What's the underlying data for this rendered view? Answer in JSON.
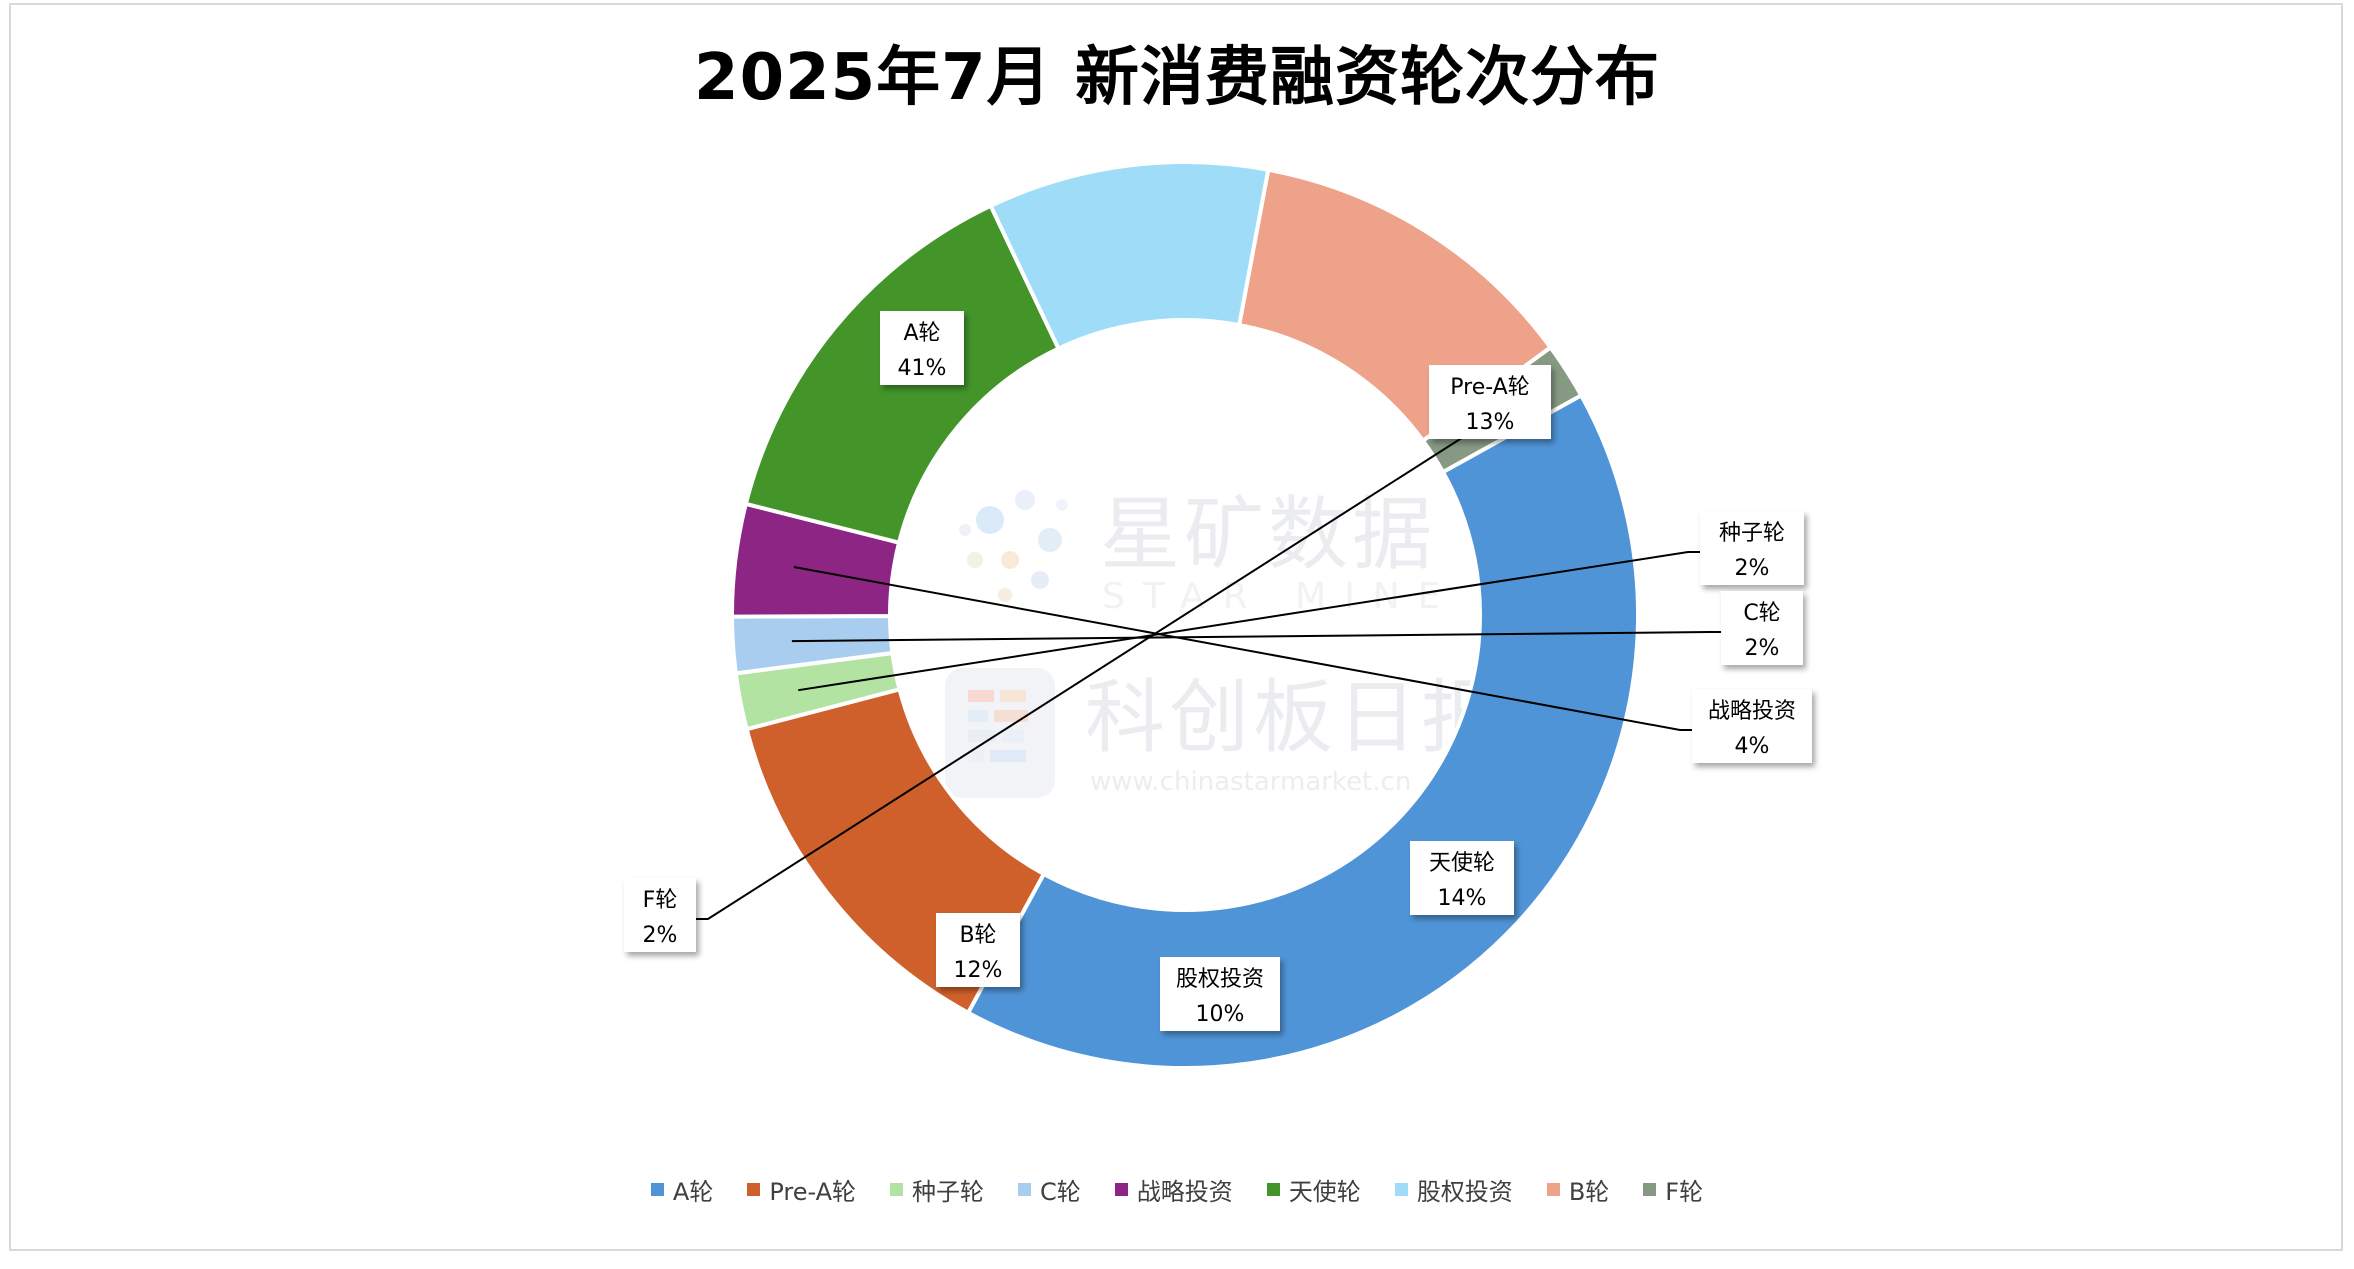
{
  "title": "2025年7月 新消费融资轮次分布",
  "watermark": {
    "brand1_cn": "星矿数据",
    "brand1_en": "STAR MINE",
    "brand2_cn": "科创板日报",
    "brand2_url": "www.chinastarmarket.cn"
  },
  "chart_data": {
    "type": "pie",
    "style": "donut",
    "title": "2025年7月 新消费融资轮次分布",
    "legend_position": "bottom",
    "slices": [
      {
        "label": "A轮",
        "value": 41,
        "value_label": "41%",
        "color": "#4f94d7"
      },
      {
        "label": "Pre-A轮",
        "value": 13,
        "value_label": "13%",
        "color": "#cf602b"
      },
      {
        "label": "种子轮",
        "value": 2,
        "value_label": "2%",
        "color": "#b3e3a2"
      },
      {
        "label": "C轮",
        "value": 2,
        "value_label": "2%",
        "color": "#a9cdee"
      },
      {
        "label": "战略投资",
        "value": 4,
        "value_label": "4%",
        "color": "#8c2584"
      },
      {
        "label": "天使轮",
        "value": 14,
        "value_label": "14%",
        "color": "#43952a"
      },
      {
        "label": "股权投资",
        "value": 10,
        "value_label": "10%",
        "color": "#9edcf7"
      },
      {
        "label": "B轮",
        "value": 12,
        "value_label": "12%",
        "color": "#eea28a"
      },
      {
        "label": "F轮",
        "value": 2,
        "value_label": "2%",
        "color": "#869a83"
      }
    ]
  }
}
